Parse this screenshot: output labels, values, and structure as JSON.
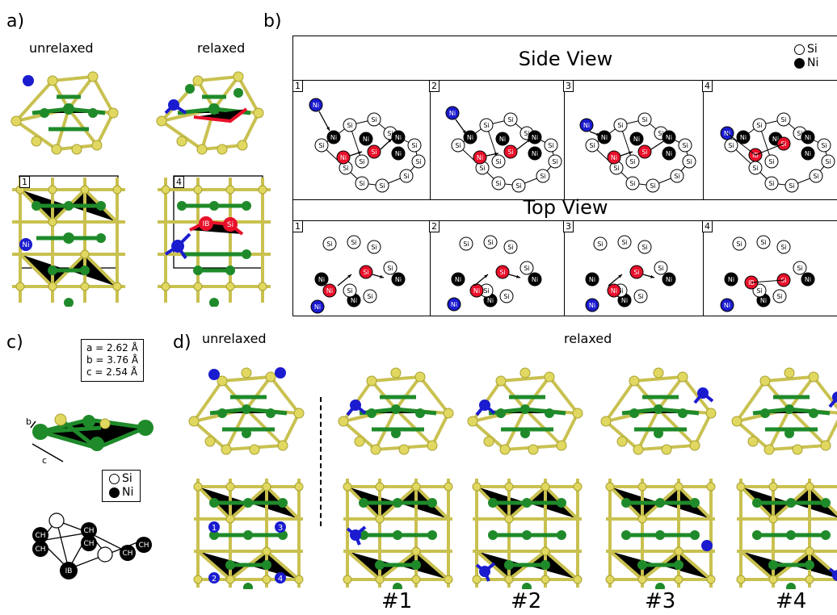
{
  "panel_a": {
    "label": "a)",
    "unrelaxed": "unrelaxed",
    "relaxed": "relaxed",
    "box_left": "1",
    "box_right": "4",
    "ni": "Ni",
    "ib": "IB",
    "si": "Si"
  },
  "panel_b": {
    "label": "b)",
    "side_view": "Side View",
    "top_view": "Top View",
    "legend_si": "Si",
    "legend_ni": "Ni",
    "panels": [
      "1",
      "2",
      "3",
      "4"
    ],
    "atom_si": "Si",
    "atom_ni": "Ni",
    "atom_ib": "IB"
  },
  "panel_c": {
    "label": "c)",
    "param_a": "a = 2.62 Å",
    "param_b": "b = 3.76 Å",
    "param_c": "c = 2.54 Å",
    "arrow_b": "b",
    "arrow_c": "c",
    "legend_si": "Si",
    "legend_ni": "Ni",
    "atom_ch": "CH",
    "atom_ib": "IB"
  },
  "panel_d": {
    "label": "d)",
    "unrelaxed": "unrelaxed",
    "relaxed": "relaxed",
    "sites": [
      "1",
      "2",
      "3",
      "4"
    ],
    "captions": [
      "#1",
      "#2",
      "#3",
      "#4"
    ]
  },
  "colors": {
    "si_cluster": "#d8d060",
    "ni_cluster": "#1f8a2a",
    "dopant": "#1b1bd0",
    "highlight": "#e8102a"
  }
}
